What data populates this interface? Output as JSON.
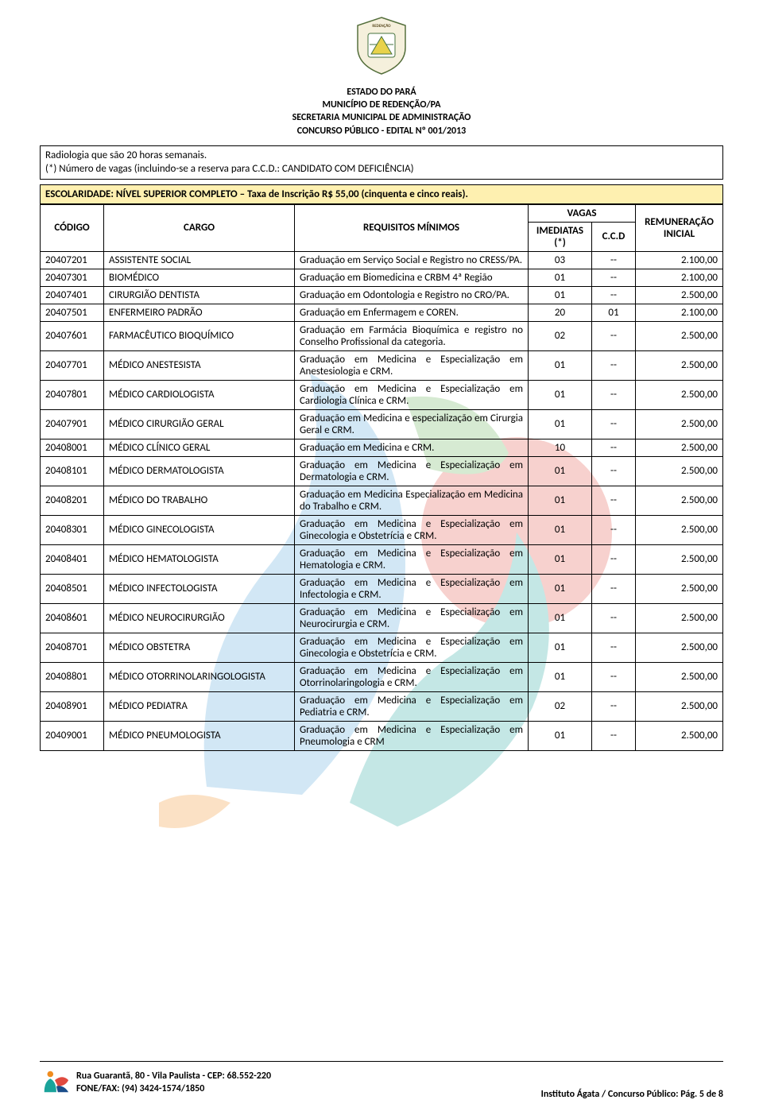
{
  "header": {
    "lines": [
      "ESTADO DO PARÁ",
      "MUNICÍPIO DE REDENÇÃO/PA",
      "SECRETARIA MUNICIPAL DE ADMINISTRAÇÃO",
      "CONCURSO PÚBLICO - EDITAL Nº 001/2013"
    ]
  },
  "top_note": {
    "line1": "Radiologia que são 20 horas semanais.",
    "line2": "(*) Número de vagas (incluindo-se a reserva para C.C.D.: CANDIDATO COM DEFICIÊNCIA)"
  },
  "section_banner": "ESCOLARIDADE: NÍVEL SUPERIOR COMPLETO – Taxa de Inscrição R$ 55,00 (cinquenta e cinco reais).",
  "table": {
    "headers": {
      "codigo": "CÓDIGO",
      "cargo": "CARGO",
      "requisitos": "REQUISITOS MÍNIMOS",
      "vagas_group": "VAGAS",
      "imediatas": "IMEDIATAS (*)",
      "ccd": "C.C.D",
      "remuneracao": "REMUNERAÇÃO INICIAL"
    },
    "rows": [
      {
        "codigo": "20407201",
        "cargo": "ASSISTENTE SOCIAL",
        "req": "Graduação em Serviço Social e Registro no CRESS/PA.",
        "imediatas": "03",
        "ccd": "--",
        "rem": "2.100,00"
      },
      {
        "codigo": "20407301",
        "cargo": "BIOMÉDICO",
        "req": "Graduação em Biomedicina e CRBM 4ª Região",
        "imediatas": "01",
        "ccd": "--",
        "rem": "2.100,00"
      },
      {
        "codigo": "20407401",
        "cargo": "CIRURGIÃO DENTISTA",
        "req": "Graduação em Odontologia e Registro no CRO/PA.",
        "imediatas": "01",
        "ccd": "--",
        "rem": "2.500,00"
      },
      {
        "codigo": "20407501",
        "cargo": "ENFERMEIRO PADRÃO",
        "req": "Graduação em Enfermagem e COREN.",
        "imediatas": "20",
        "ccd": "01",
        "rem": "2.100,00"
      },
      {
        "codigo": "20407601",
        "cargo": "FARMACÊUTICO BIOQUÍMICO",
        "req": "Graduação em Farmácia Bioquímica e registro no Conselho Profissional da categoria.",
        "imediatas": "02",
        "ccd": "--",
        "rem": "2.500,00"
      },
      {
        "codigo": "20407701",
        "cargo": "MÉDICO ANESTESISTA",
        "req": "Graduação em Medicina e Especialização em Anestesiologia e CRM.",
        "imediatas": "01",
        "ccd": "--",
        "rem": "2.500,00"
      },
      {
        "codigo": "20407801",
        "cargo": "MÉDICO CARDIOLOGISTA",
        "req": "Graduação em Medicina e Especialização em Cardiologia Clínica e CRM.",
        "imediatas": "01",
        "ccd": "--",
        "rem": "2.500,00"
      },
      {
        "codigo": "20407901",
        "cargo": "MÉDICO CIRURGIÃO GERAL",
        "req": "Graduação em Medicina e especialização em Cirurgia Geral e CRM.",
        "imediatas": "01",
        "ccd": "--",
        "rem": "2.500,00"
      },
      {
        "codigo": "20408001",
        "cargo": "MÉDICO CLÍNICO GERAL",
        "req": "Graduação em Medicina e CRM.",
        "imediatas": "10",
        "ccd": "--",
        "rem": "2.500,00"
      },
      {
        "codigo": "20408101",
        "cargo": "MÉDICO DERMATOLOGISTA",
        "req": "Graduação em Medicina e Especialização em Dermatologia e CRM.",
        "imediatas": "01",
        "ccd": "--",
        "rem": "2.500,00"
      },
      {
        "codigo": "20408201",
        "cargo": "MÉDICO DO TRABALHO",
        "req": "Graduação em Medicina Especialização em Medicina do Trabalho e CRM.",
        "imediatas": "01",
        "ccd": "--",
        "rem": "2.500,00"
      },
      {
        "codigo": "20408301",
        "cargo": "MÉDICO GINECOLOGISTA",
        "req": "Graduação em Medicina e Especialização em Ginecologia e Obstetrícia e CRM.",
        "imediatas": "01",
        "ccd": "--",
        "rem": "2.500,00"
      },
      {
        "codigo": "20408401",
        "cargo": "MÉDICO HEMATOLOGISTA",
        "req": "Graduação em Medicina e Especialização em Hematologia e CRM.",
        "imediatas": "01",
        "ccd": "--",
        "rem": "2.500,00"
      },
      {
        "codigo": "20408501",
        "cargo": "MÉDICO INFECTOLOGISTA",
        "req": "Graduação em Medicina e Especialização em Infectologia e CRM.",
        "imediatas": "01",
        "ccd": "--",
        "rem": "2.500,00"
      },
      {
        "codigo": "20408601",
        "cargo": "MÉDICO NEUROCIRURGIÃO",
        "req": "Graduação em Medicina e Especialização em Neurocirurgia e CRM.",
        "imediatas": "01",
        "ccd": "--",
        "rem": "2.500,00"
      },
      {
        "codigo": "20408701",
        "cargo": "MÉDICO OBSTETRA",
        "req": "Graduação em Medicina e Especialização em Ginecologia e Obstetrícia e CRM.",
        "imediatas": "01",
        "ccd": "--",
        "rem": "2.500,00"
      },
      {
        "codigo": "20408801",
        "cargo": "MÉDICO OTORRINOLARINGOLOGISTA",
        "req": "Graduação em Medicina e Especialização em Otorrinolaringologia e CRM.",
        "imediatas": "01",
        "ccd": "--",
        "rem": "2.500,00"
      },
      {
        "codigo": "20408901",
        "cargo": "MÉDICO PEDIATRA",
        "req": "Graduação em Medicina e Especialização em Pediatria e CRM.",
        "imediatas": "02",
        "ccd": "--",
        "rem": "2.500,00"
      },
      {
        "codigo": "20409001",
        "cargo": "MÉDICO PNEUMOLOGISTA",
        "req": "Graduação em Medicina e Especialização em Pneumologia e CRM",
        "imediatas": "01",
        "ccd": "--",
        "rem": "2.500,00"
      }
    ]
  },
  "footer": {
    "address_line1": "Rua Guarantã, 80 - Vila Paulista - CEP: 68.552-220",
    "address_line2": "FONE/FAX: (94) 3424-1574/1850",
    "right": "Instituto Ágata / Concurso Público: Pág. 5 de 8"
  },
  "colors": {
    "banner_bg": "#fef0b0",
    "border": "#000000",
    "wm_blue": "#4ea3d8",
    "wm_teal": "#1aa39a",
    "wm_red": "#e04a3f",
    "wm_green": "#5fb04f",
    "wm_orange": "#f08c1e"
  }
}
